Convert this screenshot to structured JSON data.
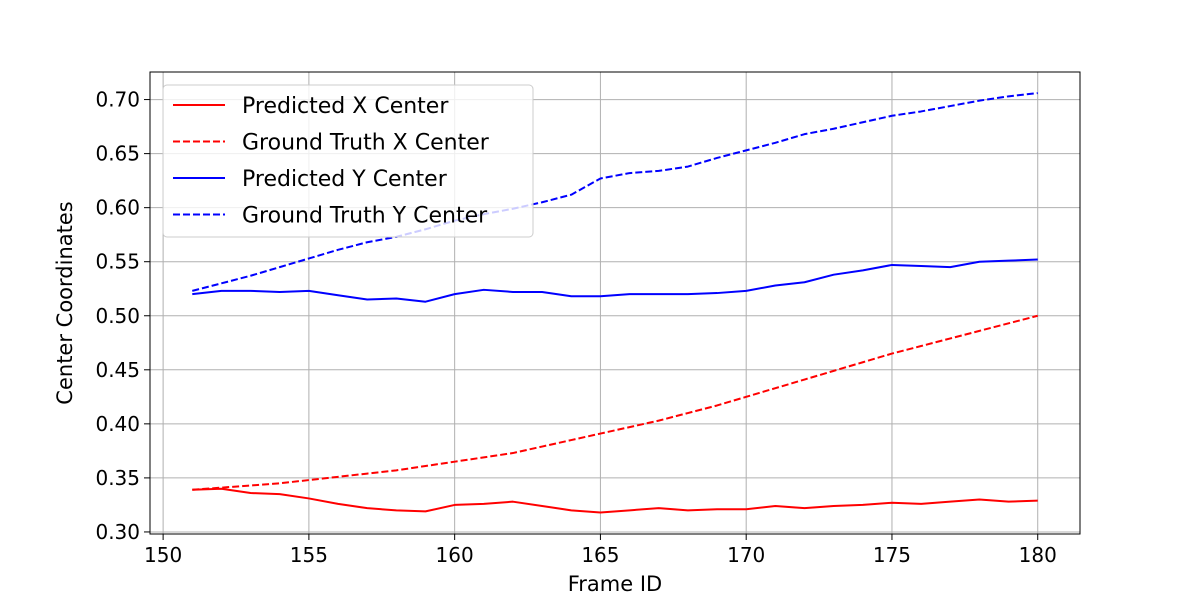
{
  "chart_data": {
    "type": "line",
    "title": "",
    "xlabel": "Frame ID",
    "ylabel": "Center Coordinates",
    "xlim": [
      149.55,
      181.45
    ],
    "ylim": [
      0.2981,
      0.7255
    ],
    "xticks": [
      150,
      155,
      160,
      165,
      170,
      175,
      180
    ],
    "yticks": [
      0.3,
      0.35,
      0.4,
      0.45,
      0.5,
      0.55,
      0.6,
      0.65,
      0.7
    ],
    "grid": true,
    "legend_position": "upper-left",
    "x": [
      151,
      152,
      153,
      154,
      155,
      156,
      157,
      158,
      159,
      160,
      161,
      162,
      163,
      164,
      165,
      166,
      167,
      168,
      169,
      170,
      171,
      172,
      173,
      174,
      175,
      176,
      177,
      178,
      179,
      180
    ],
    "series": [
      {
        "name": "Predicted X Center",
        "color": "#ff0000",
        "style": "solid",
        "values": [
          0.339,
          0.34,
          0.336,
          0.335,
          0.331,
          0.326,
          0.322,
          0.32,
          0.319,
          0.325,
          0.326,
          0.328,
          0.324,
          0.32,
          0.318,
          0.32,
          0.322,
          0.32,
          0.321,
          0.321,
          0.324,
          0.322,
          0.324,
          0.325,
          0.327,
          0.326,
          0.328,
          0.33,
          0.328,
          0.329
        ]
      },
      {
        "name": "Ground Truth X Center",
        "color": "#ff0000",
        "style": "dashed",
        "values": [
          0.339,
          0.341,
          0.343,
          0.345,
          0.348,
          0.351,
          0.354,
          0.357,
          0.361,
          0.365,
          0.369,
          0.373,
          0.379,
          0.385,
          0.391,
          0.397,
          0.403,
          0.41,
          0.417,
          0.425,
          0.433,
          0.441,
          0.449,
          0.457,
          0.465,
          0.472,
          0.479,
          0.486,
          0.493,
          0.5
        ]
      },
      {
        "name": "Predicted Y Center",
        "color": "#0000ff",
        "style": "solid",
        "values": [
          0.52,
          0.523,
          0.523,
          0.522,
          0.523,
          0.519,
          0.515,
          0.516,
          0.513,
          0.52,
          0.524,
          0.522,
          0.522,
          0.518,
          0.518,
          0.52,
          0.52,
          0.52,
          0.521,
          0.523,
          0.528,
          0.531,
          0.538,
          0.542,
          0.547,
          0.546,
          0.545,
          0.55,
          0.551,
          0.552
        ]
      },
      {
        "name": "Ground Truth Y Center",
        "color": "#0000ff",
        "style": "dashed",
        "values": [
          0.523,
          0.53,
          0.537,
          0.545,
          0.553,
          0.561,
          0.568,
          0.573,
          0.58,
          0.588,
          0.594,
          0.599,
          0.605,
          0.612,
          0.627,
          0.632,
          0.634,
          0.638,
          0.646,
          0.653,
          0.66,
          0.668,
          0.673,
          0.679,
          0.685,
          0.689,
          0.694,
          0.699,
          0.703,
          0.706
        ]
      }
    ]
  }
}
